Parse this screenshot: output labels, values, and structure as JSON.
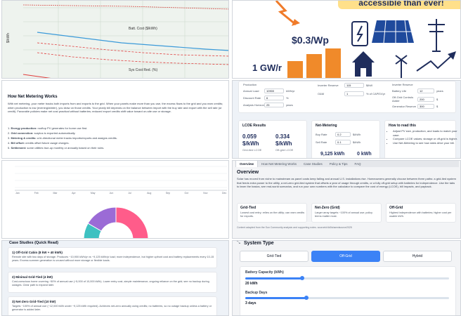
{
  "top_chart": {
    "series_labels": [
      "Batt. Cost ($/kWh)",
      "Sys Cost Red. (%)"
    ],
    "y_axis_label": "$/kWh",
    "colors": {
      "batt": "#3b9ad9",
      "sys": "#e03c3c",
      "red": "#d9534f"
    }
  },
  "infographic": {
    "headline": "accessible than ever!",
    "price_label": "$0.3/Wp",
    "capacity_label": "1 GW/r",
    "icons": [
      "lightning-icon",
      "battery-icon",
      "solar-panel-icon",
      "power-pylon-icon",
      "house-icon",
      "wind-turbine-icon",
      "trend-arrow-icon"
    ]
  },
  "how_net_metering": {
    "title": "How Net Metering Works",
    "intro": "With net metering, your meter tracks both imports from and exports to the grid. When your panels make more than you use, the excess flows to the grid and you earn credits; when production is low (evening/winter), you draw on those credits. Your yearly bill depends on the balance between import with the buy rate and export with the sell rate (or credit). Favorable policies make net cost practical without batteries; reduced export credits shift value toward on-site use or storage.",
    "steps": [
      {
        "num": "1.",
        "bold": "Energy production:",
        "text": " rooftop PV generates for home use first."
      },
      {
        "num": "2.",
        "bold": "Grid connection:",
        "text": " surplus is exported automatically."
      },
      {
        "num": "3.",
        "bold": "Metering & credits:",
        "text": " a bi-directional meter tracks imports/exports and assigns credits."
      },
      {
        "num": "4.",
        "bold": "Bill offset:",
        "text": " credits offset future usage charges."
      },
      {
        "num": "5.",
        "bold": "Settlement:",
        "text": " some utilities true-up monthly or annually based on their rules."
      }
    ]
  },
  "calculator": {
    "col1": [
      {
        "label": "Production",
        "value": ""
      },
      {
        "label": "Annual Load",
        "value": "10900",
        "unit": "kWh/yr"
      },
      {
        "label": "Discount Rate",
        "value": "6",
        "unit": "%"
      },
      {
        "label": "Analysis Horizon",
        "value": "25",
        "unit": "years"
      }
    ],
    "col2": [
      {
        "label": "Inverter Reserve",
        "value": "115",
        "unit": "$/kW"
      },
      {
        "label": "O&M",
        "value": "1",
        "unit": "% of CAPEX/yr"
      }
    ],
    "col3": [
      {
        "label": "Inverter Reserve",
        "value": ""
      },
      {
        "label": "Battery Life",
        "value": "12",
        "unit": "years"
      },
      {
        "label": "Off-Grid Controls Adder",
        "value": "200",
        "unit": "$"
      },
      {
        "label": "Generator Reserve",
        "value": "300",
        "unit": "$"
      }
    ],
    "lcoe": {
      "title": "LCOE Results",
      "val1": "0.059",
      "unit1": "$/kWh",
      "sub1": "Grid-tied LCOE",
      "val2": "0.334",
      "unit2": "$/kWh",
      "sub2": "Off-grid LCOE"
    },
    "net": {
      "title": "Net-Metering",
      "buy_label": "Buy Rate",
      "buy_value": "0.2",
      "buy_unit": "$/kWh",
      "sell_label": "Sell Rate",
      "sell_value": "0.1",
      "sell_unit": "$/kWh",
      "kwh_a": "9,125 kWh",
      "kwh_b": "0 kWh"
    },
    "howto": {
      "title": "How to read this",
      "items": [
        "Adjust PV size, production, and loads to match your case.",
        "Compare LCOE values; storage or off-grid is higher.",
        "Use Net-Metering to see how rates drive your bill."
      ]
    }
  },
  "mid_chart": {
    "months": [
      "Jan",
      "Feb",
      "Mar",
      "Apr",
      "May",
      "Jun",
      "Jul",
      "Aug",
      "Sep",
      "Oct",
      "Nov",
      "Dec"
    ],
    "donut_colors": [
      "#ff5c8a",
      "#3ec1c1",
      "#9b6bd6"
    ]
  },
  "overview": {
    "tabs": [
      "Overview",
      "How Net Metering Works",
      "Case Studies",
      "Policy & Tips",
      "FAQ"
    ],
    "title": "Overview",
    "text": "Solar has moved from niche to mainstream as panel costs keep falling and annual U.S. installations rise. Homeowners generally choose between three paths: a grid-tied system that feeds extra power to the utility, a net-zero grid-tied system that offsets a year of usage through credits, or a fully off-grid setup with batteries for independence. Use the tabs to learn the basics, see real-world scenarios, and run your own numbers with the calculator to compare the cost of energy (LCOE), bill impacts, and payback.",
    "cards": [
      {
        "title": "Grid-Tied",
        "text": "Lowest cost entry; relies on the utility; can earn credits for exports."
      },
      {
        "title": "Net-Zero (Grid)",
        "text": "Larger array targets ~100% of annual use; policy terms matter most."
      },
      {
        "title": "Off-Grid",
        "text": "Highest independence with batteries; higher cost per usable kWh."
      }
    ],
    "footnote": "Content adapted from the Sun Community analysis and supporting notes. sourceid:6d0sharedsource2025"
  },
  "case_studies": {
    "title": "Case Studies (Quick Read)",
    "items": [
      {
        "title": "1) Off-Grid Cabin (8 kW + 40 kWh)",
        "text": "Remote site with two days of storage. Produces ~10,900 kWh/yr vs ~9,125 kWh/yr load; more independence, but higher upfront cost and battery replacements every 10-15 years. Excess summer generation is unused without more storage or flexible loads."
      },
      {
        "title": "2) Minimal Grid-Tied (4 kW)",
        "text": "Cost-conscious home covering ~50% of annual use (~5,000 of 10,000 kWh). Lower entry cost, simple maintenance, ongoing reliance on the grid; see no backup during outages. Clear path to expand later."
      },
      {
        "title": "3) Net-Zero Grid-Tied (10 kW)",
        "text": "Targets ~100% of annual use (~12,000 kWh under ~9,125 kWh required). Achieves net-zero annually using credits; no batteries, so no outage backup unless a battery or generator is added later."
      }
    ]
  },
  "system_type": {
    "title": "System Type",
    "buttons": [
      "Grid-Tied",
      "Off-Grid",
      "Hybrid"
    ],
    "active_index": 1,
    "battery_label": "Battery Capacity (kWh)",
    "battery_value": "20 kWh",
    "battery_fraction": 0.28,
    "backup_label": "Backup Days",
    "backup_value": "3 days",
    "backup_fraction": 0.3
  }
}
